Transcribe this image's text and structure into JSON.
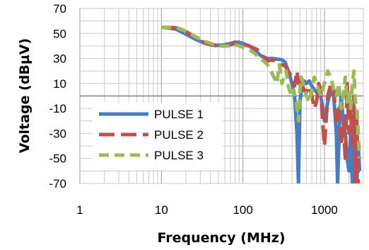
{
  "chart_data": {
    "type": "line",
    "xscale": "log",
    "xlabel": "Frequency (MHz)",
    "ylabel": "Voltage (dBµV)",
    "xlim": [
      1,
      3000
    ],
    "ylim": [
      -70,
      70
    ],
    "xticks": [
      "1",
      "10",
      "100",
      "1000"
    ],
    "yticks": [
      "70",
      "50",
      "30",
      "10",
      "-10",
      "-30",
      "-50",
      "-70"
    ],
    "grid": true,
    "legend_position": "bottom-left",
    "series": [
      {
        "name": "PULSE 1",
        "color": "#4a7cc0",
        "dash": "solid",
        "x": [
          10,
          12,
          15,
          18,
          22,
          27,
          33,
          40,
          50,
          60,
          70,
          80,
          90,
          100,
          120,
          140,
          160,
          180,
          200,
          230,
          260,
          300,
          330,
          360,
          400,
          430,
          460,
          480,
          500,
          530,
          560,
          600,
          650,
          700,
          750,
          800,
          850,
          900,
          950,
          1000,
          1100,
          1200,
          1300,
          1400,
          1450,
          1500,
          1550,
          1600,
          1700,
          1800,
          1900,
          2000,
          2100,
          2200,
          2300,
          2400,
          2500,
          2600,
          2700
        ],
        "y": [
          55,
          54.5,
          53.5,
          51,
          48,
          45,
          42.5,
          41,
          40.5,
          41,
          42,
          43,
          43,
          42,
          40,
          37,
          33,
          31,
          30,
          30,
          29.5,
          29,
          27,
          20,
          10,
          0,
          -30,
          -70,
          -5,
          8,
          12,
          10,
          12,
          8,
          5,
          3,
          4,
          0,
          -10,
          -20,
          -5,
          5,
          0,
          -30,
          -70,
          -40,
          -10,
          0,
          -20,
          -30,
          -50,
          -60,
          -30,
          -70,
          -20,
          -50,
          -70,
          -40,
          -60
        ]
      },
      {
        "name": "PULSE 2",
        "color": "#c0504d",
        "dash": "long",
        "x": [
          10,
          12,
          15,
          18,
          22,
          27,
          33,
          40,
          50,
          60,
          70,
          80,
          90,
          100,
          120,
          140,
          160,
          180,
          200,
          230,
          260,
          300,
          330,
          360,
          400,
          430,
          460,
          480,
          500,
          530,
          560,
          600,
          650,
          700,
          750,
          800,
          850,
          900,
          950,
          1000,
          1100,
          1200,
          1300,
          1400,
          1500,
          1600,
          1700,
          1800,
          1900,
          2000,
          2100,
          2200,
          2300,
          2400,
          2500,
          2600
        ],
        "y": [
          55,
          55,
          54.5,
          53,
          50,
          46,
          43,
          41,
          40,
          40,
          41,
          42,
          42,
          41,
          40,
          38,
          36,
          31,
          28,
          29,
          27,
          25,
          24,
          20,
          15,
          8,
          20,
          10,
          15,
          10,
          5,
          3,
          8,
          0,
          -10,
          -5,
          10,
          5,
          -20,
          -40,
          0,
          10,
          5,
          -20,
          -10,
          -40,
          -20,
          -50,
          10,
          -30,
          -10,
          -40,
          0,
          -70,
          -20,
          -70
        ]
      },
      {
        "name": "PULSE 3",
        "color": "#9bbb59",
        "dash": "medium",
        "x": [
          10,
          12,
          15,
          18,
          22,
          27,
          33,
          40,
          50,
          60,
          70,
          80,
          90,
          100,
          120,
          140,
          160,
          180,
          200,
          220,
          240,
          260,
          280,
          300,
          320,
          340,
          360,
          380,
          400,
          420,
          450,
          480,
          500,
          520,
          550,
          600,
          650,
          700,
          750,
          800,
          850,
          900,
          1000,
          1100,
          1200,
          1300,
          1400,
          1500,
          1600,
          1700,
          1800,
          1900,
          2000,
          2100,
          2200,
          2300,
          2400,
          2500,
          2600,
          2700
        ],
        "y": [
          55,
          55,
          55,
          53,
          50,
          47,
          44,
          42,
          40,
          40,
          40,
          41,
          40,
          39,
          37,
          34,
          30,
          28,
          25,
          20,
          15,
          10,
          25,
          10,
          15,
          20,
          8,
          3,
          0,
          5,
          -5,
          -20,
          5,
          15,
          10,
          0,
          -5,
          5,
          15,
          10,
          5,
          0,
          10,
          20,
          15,
          5,
          0,
          10,
          -10,
          0,
          15,
          -5,
          5,
          -10,
          10,
          20,
          -5,
          -10,
          -30,
          -50
        ]
      }
    ]
  }
}
